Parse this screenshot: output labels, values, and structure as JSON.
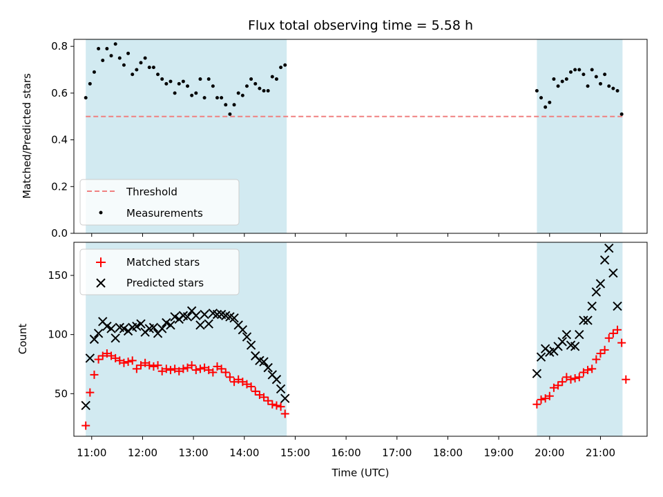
{
  "chart_data": {
    "type": "scatter",
    "title": "Flux total observing time = 5.58 h",
    "xlabel": "Time (UTC)",
    "x_ticks": [
      "11:00",
      "12:00",
      "13:00",
      "14:00",
      "15:00",
      "16:00",
      "17:00",
      "18:00",
      "19:00",
      "20:00",
      "21:00"
    ],
    "shaded_intervals": [
      [
        "10:53",
        "14:50"
      ],
      [
        "19:45",
        "21:26"
      ]
    ],
    "colors": {
      "shade": "#add8e6",
      "threshold": "#f08080",
      "matched": "#ff0000",
      "predicted": "#000000",
      "measurement": "#000000"
    },
    "panels": [
      {
        "ylabel": "Matched/Predicted stars",
        "ylim": [
          0,
          0.83
        ],
        "y_ticks": [
          "0.0",
          "0.2",
          "0.4",
          "0.6",
          "0.8"
        ],
        "legend_position": "lower-left",
        "threshold": {
          "name": "Threshold",
          "value": 0.5,
          "style": "dashed"
        },
        "series": [
          {
            "name": "Measurements",
            "marker": "dot",
            "points": [
              [
                "10:53",
                0.58
              ],
              [
                "10:58",
                0.64
              ],
              [
                "11:03",
                0.69
              ],
              [
                "11:08",
                0.79
              ],
              [
                "11:13",
                0.74
              ],
              [
                "11:18",
                0.79
              ],
              [
                "11:23",
                0.76
              ],
              [
                "11:28",
                0.81
              ],
              [
                "11:33",
                0.75
              ],
              [
                "11:38",
                0.72
              ],
              [
                "11:43",
                0.77
              ],
              [
                "11:48",
                0.68
              ],
              [
                "11:53",
                0.7
              ],
              [
                "11:58",
                0.73
              ],
              [
                "12:03",
                0.75
              ],
              [
                "12:08",
                0.71
              ],
              [
                "12:13",
                0.71
              ],
              [
                "12:18",
                0.68
              ],
              [
                "12:23",
                0.66
              ],
              [
                "12:28",
                0.64
              ],
              [
                "12:33",
                0.65
              ],
              [
                "12:38",
                0.6
              ],
              [
                "12:43",
                0.64
              ],
              [
                "12:48",
                0.65
              ],
              [
                "12:53",
                0.63
              ],
              [
                "12:58",
                0.59
              ],
              [
                "13:03",
                0.6
              ],
              [
                "13:08",
                0.66
              ],
              [
                "13:13",
                0.58
              ],
              [
                "13:18",
                0.66
              ],
              [
                "13:23",
                0.63
              ],
              [
                "13:28",
                0.58
              ],
              [
                "13:33",
                0.58
              ],
              [
                "13:38",
                0.55
              ],
              [
                "13:43",
                0.51
              ],
              [
                "13:48",
                0.55
              ],
              [
                "13:53",
                0.6
              ],
              [
                "13:58",
                0.59
              ],
              [
                "14:03",
                0.63
              ],
              [
                "14:08",
                0.66
              ],
              [
                "14:13",
                0.64
              ],
              [
                "14:18",
                0.62
              ],
              [
                "14:23",
                0.61
              ],
              [
                "14:28",
                0.61
              ],
              [
                "14:33",
                0.67
              ],
              [
                "14:38",
                0.66
              ],
              [
                "14:43",
                0.71
              ],
              [
                "14:48",
                0.72
              ],
              [
                "19:45",
                0.61
              ],
              [
                "19:50",
                0.58
              ],
              [
                "19:55",
                0.54
              ],
              [
                "20:00",
                0.56
              ],
              [
                "20:05",
                0.66
              ],
              [
                "20:10",
                0.63
              ],
              [
                "20:15",
                0.65
              ],
              [
                "20:20",
                0.66
              ],
              [
                "20:25",
                0.69
              ],
              [
                "20:30",
                0.7
              ],
              [
                "20:35",
                0.7
              ],
              [
                "20:40",
                0.68
              ],
              [
                "20:45",
                0.63
              ],
              [
                "20:50",
                0.7
              ],
              [
                "20:55",
                0.67
              ],
              [
                "21:00",
                0.64
              ],
              [
                "21:05",
                0.68
              ],
              [
                "21:10",
                0.63
              ],
              [
                "21:15",
                0.62
              ],
              [
                "21:20",
                0.61
              ],
              [
                "21:25",
                0.51
              ]
            ]
          }
        ]
      },
      {
        "ylabel": "Count",
        "ylim": [
          14,
          178
        ],
        "y_ticks": [
          "50",
          "100",
          "150"
        ],
        "legend_position": "upper-left",
        "series": [
          {
            "name": "Matched stars",
            "marker": "plus",
            "points": [
              [
                "10:53",
                23
              ],
              [
                "10:58",
                51
              ],
              [
                "11:03",
                66
              ],
              [
                "11:08",
                79
              ],
              [
                "11:13",
                82
              ],
              [
                "11:18",
                84
              ],
              [
                "11:23",
                82
              ],
              [
                "11:28",
                80
              ],
              [
                "11:33",
                78
              ],
              [
                "11:38",
                76
              ],
              [
                "11:43",
                77
              ],
              [
                "11:48",
                78
              ],
              [
                "11:53",
                71
              ],
              [
                "11:58",
                74
              ],
              [
                "12:03",
                76
              ],
              [
                "12:08",
                74
              ],
              [
                "12:13",
                73
              ],
              [
                "12:18",
                74
              ],
              [
                "12:23",
                69
              ],
              [
                "12:28",
                71
              ],
              [
                "12:33",
                70
              ],
              [
                "12:38",
                71
              ],
              [
                "12:43",
                69
              ],
              [
                "12:48",
                71
              ],
              [
                "12:53",
                72
              ],
              [
                "12:58",
                74
              ],
              [
                "13:03",
                70
              ],
              [
                "13:08",
                71
              ],
              [
                "13:13",
                72
              ],
              [
                "13:18",
                70
              ],
              [
                "13:23",
                68
              ],
              [
                "13:28",
                73
              ],
              [
                "13:33",
                71
              ],
              [
                "13:38",
                68
              ],
              [
                "13:43",
                64
              ],
              [
                "13:48",
                60
              ],
              [
                "13:53",
                62
              ],
              [
                "13:58",
                60
              ],
              [
                "14:03",
                58
              ],
              [
                "14:08",
                56
              ],
              [
                "14:13",
                52
              ],
              [
                "14:18",
                49
              ],
              [
                "14:23",
                47
              ],
              [
                "14:28",
                44
              ],
              [
                "14:33",
                41
              ],
              [
                "14:38",
                40
              ],
              [
                "14:43",
                39
              ],
              [
                "14:48",
                33
              ],
              [
                "19:45",
                41
              ],
              [
                "19:50",
                45
              ],
              [
                "19:55",
                46
              ],
              [
                "20:00",
                48
              ],
              [
                "20:05",
                55
              ],
              [
                "20:10",
                57
              ],
              [
                "20:15",
                60
              ],
              [
                "20:20",
                64
              ],
              [
                "20:25",
                62
              ],
              [
                "20:30",
                63
              ],
              [
                "20:35",
                64
              ],
              [
                "20:40",
                68
              ],
              [
                "20:45",
                70
              ],
              [
                "20:50",
                71
              ],
              [
                "20:55",
                79
              ],
              [
                "21:00",
                84
              ],
              [
                "21:05",
                87
              ],
              [
                "21:10",
                97
              ],
              [
                "21:15",
                101
              ],
              [
                "21:20",
                104
              ],
              [
                "21:25",
                93
              ],
              [
                "21:30",
                62
              ]
            ]
          },
          {
            "name": "Predicted stars",
            "marker": "x",
            "points": [
              [
                "10:53",
                40
              ],
              [
                "10:58",
                80
              ],
              [
                "11:03",
                96
              ],
              [
                "11:08",
                101
              ],
              [
                "11:13",
                111
              ],
              [
                "11:18",
                107
              ],
              [
                "11:23",
                105
              ],
              [
                "11:28",
                97
              ],
              [
                "11:33",
                106
              ],
              [
                "11:38",
                105
              ],
              [
                "11:43",
                103
              ],
              [
                "11:48",
                106
              ],
              [
                "11:53",
                107
              ],
              [
                "11:58",
                109
              ],
              [
                "12:03",
                102
              ],
              [
                "12:08",
                105
              ],
              [
                "12:13",
                106
              ],
              [
                "12:18",
                101
              ],
              [
                "12:23",
                105
              ],
              [
                "12:28",
                110
              ],
              [
                "12:33",
                108
              ],
              [
                "12:38",
                115
              ],
              [
                "12:43",
                113
              ],
              [
                "12:48",
                116
              ],
              [
                "12:53",
                115
              ],
              [
                "12:58",
                120
              ],
              [
                "13:03",
                116
              ],
              [
                "13:08",
                108
              ],
              [
                "13:13",
                117
              ],
              [
                "13:18",
                109
              ],
              [
                "13:23",
                118
              ],
              [
                "13:28",
                117
              ],
              [
                "13:33",
                117
              ],
              [
                "13:38",
                116
              ],
              [
                "13:43",
                115
              ],
              [
                "13:48",
                114
              ],
              [
                "13:53",
                108
              ],
              [
                "13:58",
                104
              ],
              [
                "14:03",
                98
              ],
              [
                "14:08",
                91
              ],
              [
                "14:13",
                82
              ],
              [
                "14:18",
                78
              ],
              [
                "14:23",
                77
              ],
              [
                "14:28",
                72
              ],
              [
                "14:33",
                66
              ],
              [
                "14:38",
                62
              ],
              [
                "14:43",
                54
              ],
              [
                "14:48",
                46
              ],
              [
                "19:45",
                67
              ],
              [
                "19:50",
                81
              ],
              [
                "19:55",
                88
              ],
              [
                "20:00",
                85
              ],
              [
                "20:05",
                86
              ],
              [
                "20:10",
                90
              ],
              [
                "20:15",
                94
              ],
              [
                "20:20",
                100
              ],
              [
                "20:25",
                91
              ],
              [
                "20:30",
                90
              ],
              [
                "20:35",
                100
              ],
              [
                "20:40",
                112
              ],
              [
                "20:45",
                112
              ],
              [
                "20:50",
                124
              ],
              [
                "20:55",
                136
              ],
              [
                "21:00",
                143
              ],
              [
                "21:05",
                163
              ],
              [
                "21:10",
                173
              ],
              [
                "21:15",
                152
              ],
              [
                "21:20",
                124
              ]
            ]
          }
        ]
      }
    ]
  }
}
